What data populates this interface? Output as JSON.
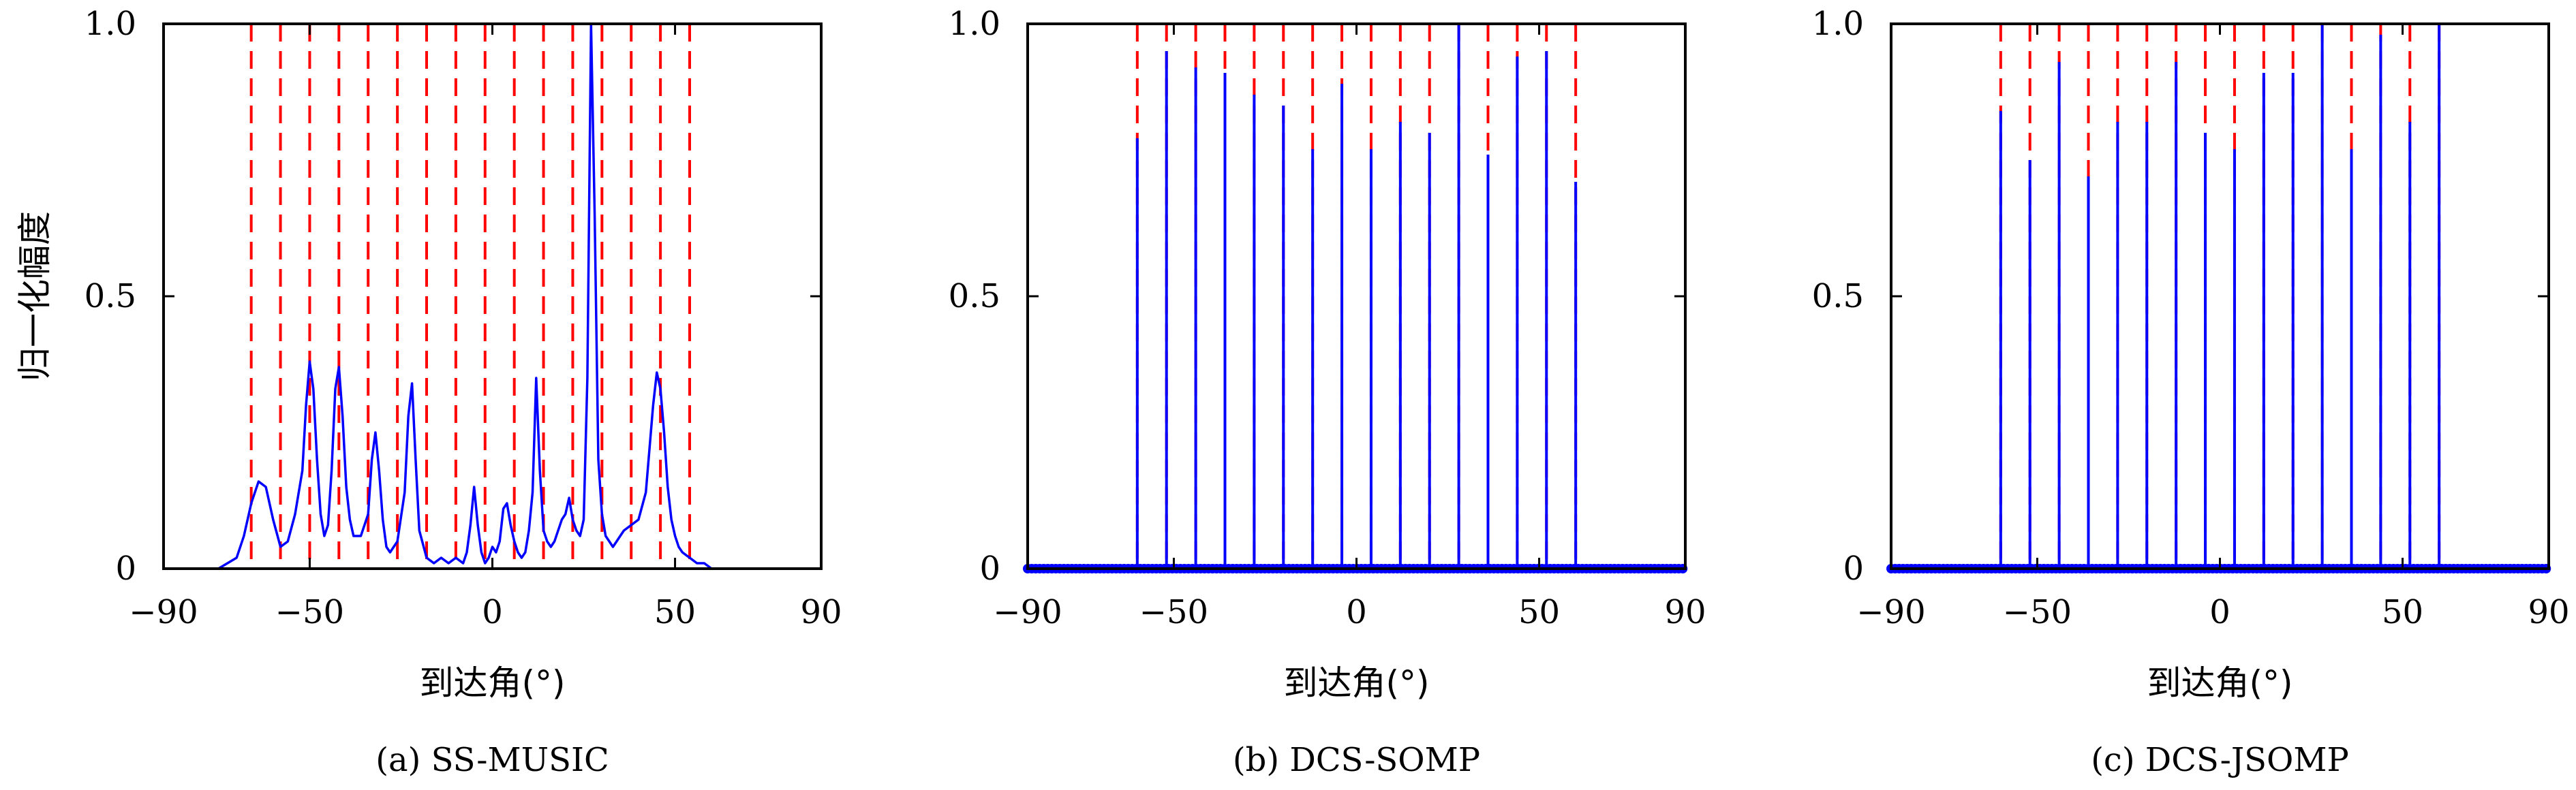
{
  "chart_data": [
    {
      "type": "line",
      "caption": "(a) SS-MUSIC",
      "xlabel": "到达角(°)",
      "ylabel": "归一化幅度",
      "xlim": [
        -90,
        90
      ],
      "ylim": [
        0,
        1
      ],
      "x_ticks": [
        -90,
        -50,
        0,
        50,
        90
      ],
      "x_tick_labels": [
        "−90",
        "−50",
        "0",
        "50",
        "90"
      ],
      "y_ticks": [
        0,
        0.5,
        1.0
      ],
      "y_tick_labels": [
        "0",
        "0.5",
        "1.0"
      ],
      "true_doas": [
        -66,
        -58,
        -50,
        -42,
        -34,
        -26,
        -18,
        -10,
        -2,
        6,
        14,
        22,
        30,
        38,
        46,
        54
      ],
      "true_doa_color": "#ff0000",
      "series_color": "#0000ff",
      "series": [
        {
          "x": [
            -90,
            -75,
            -70,
            -68,
            -66,
            -64,
            -62,
            -60,
            -58,
            -56,
            -54,
            -52,
            -51,
            -50,
            -49,
            -48,
            -47,
            -46,
            -45,
            -44,
            -43,
            -42,
            -41,
            -40,
            -39,
            -38,
            -36,
            -34,
            -33,
            -32,
            -31,
            -30,
            -29,
            -28,
            -26,
            -24,
            -23,
            -22,
            -21,
            -20,
            -18,
            -16,
            -14,
            -12,
            -10,
            -8,
            -7,
            -6,
            -5,
            -4,
            -3,
            -2,
            -1,
            0,
            1,
            2,
            3,
            4,
            5,
            6,
            7,
            8,
            9,
            10,
            11,
            12,
            13,
            14,
            15,
            16,
            17,
            18,
            19,
            20,
            21,
            22,
            23,
            24,
            25,
            26,
            27,
            28,
            29,
            30,
            31,
            32,
            33,
            34,
            35,
            36,
            38,
            40,
            42,
            44,
            45,
            46,
            47,
            48,
            49,
            50,
            51,
            52,
            54,
            56,
            58,
            60,
            65,
            70,
            80,
            90
          ],
          "y": [
            0.0,
            0.0,
            0.02,
            0.06,
            0.12,
            0.16,
            0.15,
            0.09,
            0.04,
            0.05,
            0.1,
            0.18,
            0.3,
            0.38,
            0.33,
            0.2,
            0.1,
            0.06,
            0.08,
            0.18,
            0.33,
            0.37,
            0.28,
            0.15,
            0.09,
            0.06,
            0.06,
            0.1,
            0.2,
            0.25,
            0.18,
            0.09,
            0.04,
            0.03,
            0.05,
            0.14,
            0.28,
            0.34,
            0.2,
            0.07,
            0.02,
            0.01,
            0.02,
            0.01,
            0.02,
            0.01,
            0.03,
            0.08,
            0.15,
            0.08,
            0.03,
            0.01,
            0.02,
            0.04,
            0.03,
            0.05,
            0.11,
            0.12,
            0.08,
            0.05,
            0.03,
            0.02,
            0.03,
            0.07,
            0.14,
            0.35,
            0.18,
            0.07,
            0.05,
            0.04,
            0.05,
            0.07,
            0.09,
            0.1,
            0.13,
            0.09,
            0.07,
            0.06,
            0.09,
            0.35,
            1.0,
            0.65,
            0.2,
            0.1,
            0.06,
            0.05,
            0.04,
            0.05,
            0.06,
            0.07,
            0.08,
            0.09,
            0.14,
            0.3,
            0.36,
            0.33,
            0.25,
            0.15,
            0.09,
            0.06,
            0.04,
            0.03,
            0.02,
            0.01,
            0.01,
            0.0,
            0.0,
            0.0,
            0.0,
            0.0
          ]
        }
      ]
    },
    {
      "type": "stem",
      "caption": "(b) DCS-SOMP",
      "xlabel": "到达角(°)",
      "ylabel": "",
      "xlim": [
        -90,
        90
      ],
      "ylim": [
        0,
        1
      ],
      "x_ticks": [
        -90,
        -50,
        0,
        50,
        90
      ],
      "x_tick_labels": [
        "−90",
        "−50",
        "0",
        "50",
        "90"
      ],
      "y_ticks": [
        0,
        0.5,
        1.0
      ],
      "y_tick_labels": [
        "0",
        "0.5",
        "1.0"
      ],
      "true_doas": [
        -60,
        -52,
        -44,
        -36,
        -28,
        -20,
        -12,
        -4,
        4,
        12,
        20,
        28,
        36,
        44,
        52,
        60
      ],
      "true_doa_color": "#ff0000",
      "series_color": "#0000ff",
      "series": [
        {
          "x": [
            -60,
            -52,
            -44,
            -36,
            -28,
            -20,
            -12,
            -4,
            4,
            12,
            20,
            28,
            36,
            44,
            52,
            60
          ],
          "y": [
            0.79,
            0.95,
            0.92,
            0.91,
            0.87,
            0.85,
            0.77,
            0.89,
            0.77,
            0.82,
            0.8,
            1.0,
            0.76,
            0.94,
            0.95,
            0.71
          ]
        }
      ]
    },
    {
      "type": "stem",
      "caption": "(c) DCS-JSOMP",
      "xlabel": "到达角(°)",
      "ylabel": "",
      "xlim": [
        -90,
        90
      ],
      "ylim": [
        0,
        1
      ],
      "x_ticks": [
        -90,
        -50,
        0,
        50,
        90
      ],
      "x_tick_labels": [
        "−90",
        "−50",
        "0",
        "50",
        "90"
      ],
      "y_ticks": [
        0,
        0.5,
        1.0
      ],
      "y_tick_labels": [
        "0",
        "0.5",
        "1.0"
      ],
      "true_doas": [
        -60,
        -52,
        -44,
        -36,
        -28,
        -20,
        -12,
        -4,
        4,
        12,
        20,
        28,
        36,
        44,
        52,
        60
      ],
      "true_doa_color": "#ff0000",
      "series_color": "#0000ff",
      "series": [
        {
          "x": [
            -60,
            -52,
            -44,
            -36,
            -28,
            -20,
            -12,
            -4,
            4,
            12,
            20,
            28,
            36,
            44,
            52,
            60
          ],
          "y": [
            0.84,
            0.75,
            0.93,
            0.72,
            0.82,
            0.82,
            0.93,
            0.8,
            0.77,
            0.91,
            0.91,
            1.0,
            0.77,
            0.98,
            0.82,
            1.0
          ]
        }
      ]
    }
  ]
}
